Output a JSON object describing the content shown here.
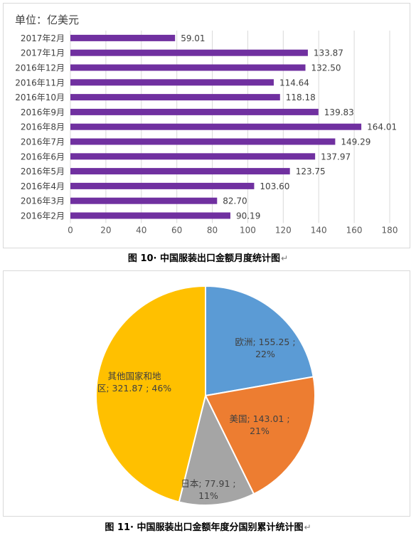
{
  "chart_data": [
    {
      "type": "bar",
      "orientation": "horizontal",
      "unit_label": "单位：亿美元",
      "categories": [
        "2017年2月",
        "2017年1月",
        "2016年12月",
        "2016年11月",
        "2016年10月",
        "2016年9月",
        "2016年8月",
        "2016年7月",
        "2016年6月",
        "2016年5月",
        "2016年4月",
        "2016年3月",
        "2016年2月"
      ],
      "values": [
        59.01,
        133.87,
        132.5,
        114.64,
        118.18,
        139.83,
        164.01,
        149.29,
        137.97,
        123.75,
        103.6,
        82.7,
        90.19
      ],
      "value_labels": [
        "59.01",
        "133.87",
        "132.50",
        "114.64",
        "118.18",
        "139.83",
        "164.01",
        "149.29",
        "137.97",
        "123.75",
        "103.60",
        "82.70",
        "90.19"
      ],
      "xlim": [
        0,
        180
      ],
      "xticks": [
        0,
        20,
        40,
        60,
        80,
        100,
        120,
        140,
        160,
        180
      ],
      "grid": true,
      "bar_color": "#7030a0",
      "caption": "图 10· 中国服装出口金额月度统计图"
    },
    {
      "type": "pie",
      "slices": [
        {
          "name": "欧洲",
          "value": 155.25,
          "percent": "22%",
          "label_line1": "欧洲; 155.25 ;",
          "label_line2": "22%",
          "color": "#5b9bd5"
        },
        {
          "name": "美国",
          "value": 143.01,
          "percent": "21%",
          "label_line1": "美国; 143.01 ;",
          "label_line2": "21%",
          "color": "#ed7d31"
        },
        {
          "name": "日本",
          "value": 77.91,
          "percent": "11%",
          "label_line1": "日本; 77.91 ;",
          "label_line2": "11%",
          "color": "#a5a5a5"
        },
        {
          "name": "其他国家和地区",
          "value": 321.87,
          "percent": "46%",
          "label_line1": "其他国家和地",
          "label_line2": "区; 321.87 ; 46%",
          "color": "#ffc000"
        }
      ],
      "caption": "图 11· 中国服装出口金额年度分国别累计统计图"
    }
  ]
}
